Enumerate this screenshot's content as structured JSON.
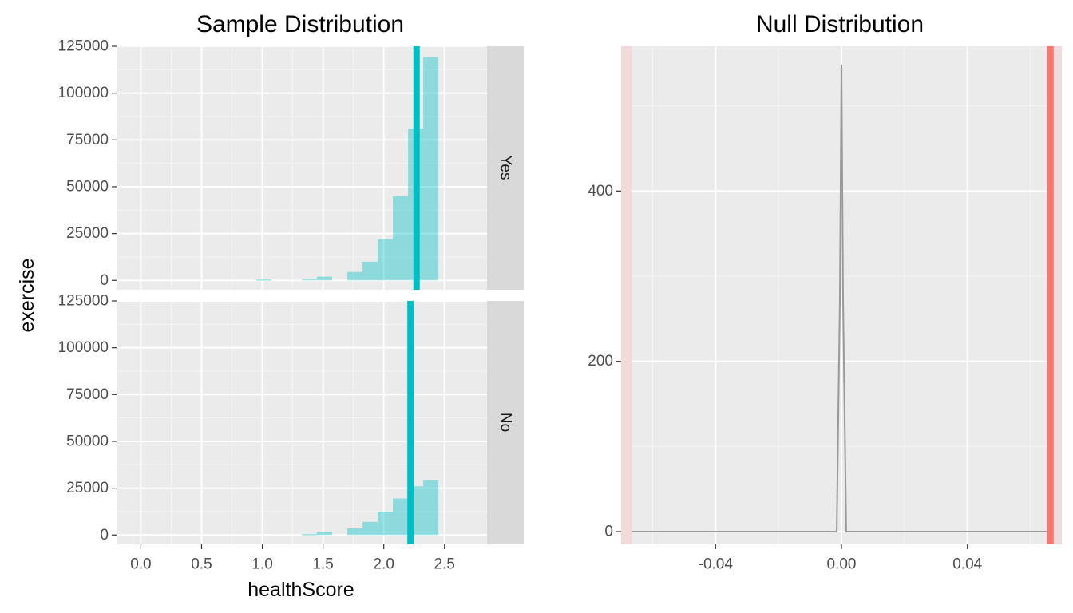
{
  "chart_data": [
    {
      "type": "bar",
      "title": "Sample Distribution",
      "xlabel": "healthScore",
      "ylabel": "exercise",
      "xlim": [
        -0.2,
        2.85
      ],
      "ylim": [
        -5000,
        125000
      ],
      "x_ticks": [
        {
          "value": 0.0,
          "label": "0.0"
        },
        {
          "value": 0.5,
          "label": "0.5"
        },
        {
          "value": 1.0,
          "label": "1.0"
        },
        {
          "value": 1.5,
          "label": "1.5"
        },
        {
          "value": 2.0,
          "label": "2.0"
        },
        {
          "value": 2.5,
          "label": "2.5"
        }
      ],
      "y_ticks": [
        {
          "value": 0,
          "label": "0"
        },
        {
          "value": 25000,
          "label": "25000"
        },
        {
          "value": 50000,
          "label": "50000"
        },
        {
          "value": 75000,
          "label": "75000"
        },
        {
          "value": 100000,
          "label": "100000"
        },
        {
          "value": 125000,
          "label": "125000"
        }
      ],
      "bin_edges": [
        0.95,
        1.075,
        1.2,
        1.325,
        1.45,
        1.575,
        1.7,
        1.825,
        1.95,
        2.075,
        2.2,
        2.325,
        2.45
      ],
      "bar_color": "#00bfc4",
      "line_color": "#00bfc4",
      "grid": true,
      "facets": [
        {
          "strip_label": "Yes",
          "counts": [
            500,
            0,
            0,
            800,
            2000,
            0,
            4500,
            10000,
            22000,
            45000,
            81000,
            119000
          ],
          "mean_line": 2.27
        },
        {
          "strip_label": "No",
          "counts": [
            0,
            0,
            0,
            500,
            1500,
            0,
            3500,
            7000,
            12500,
            19500,
            26000,
            29500
          ],
          "mean_line": 2.22
        }
      ]
    },
    {
      "type": "line",
      "title": "Null Distribution",
      "xlabel": "",
      "ylabel": "",
      "xlim": [
        -0.07,
        0.07
      ],
      "ylim": [
        -15,
        570
      ],
      "x_ticks": [
        {
          "value": -0.04,
          "label": "-0.04"
        },
        {
          "value": 0.0,
          "label": "0.00"
        },
        {
          "value": 0.04,
          "label": "0.04"
        }
      ],
      "y_ticks": [
        {
          "value": 0,
          "label": "0"
        },
        {
          "value": 200,
          "label": "200"
        },
        {
          "value": 400,
          "label": "400"
        }
      ],
      "x": [
        -0.0666,
        -0.0015,
        -0.0005,
        0.0,
        0.0005,
        0.0015,
        0.0024,
        0.0664
      ],
      "y": [
        0,
        0,
        275,
        548,
        275,
        0,
        0,
        0
      ],
      "line_color": "#999999",
      "observed_stat": 0.0664,
      "observed_color": "#f8766d",
      "shade_ranges": [
        [
          -0.07,
          -0.0666
        ],
        [
          0.0664,
          0.07
        ]
      ],
      "shade_color": "#f2dada",
      "grid": true
    }
  ]
}
